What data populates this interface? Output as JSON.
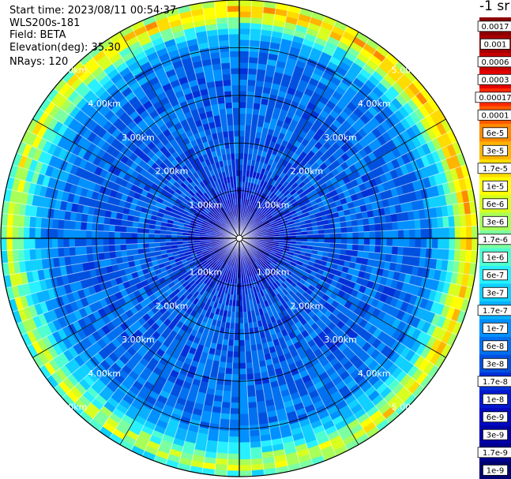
{
  "info": {
    "start_time": "Start time: 2023/08/11 00:54:37",
    "device": "WLS200s-181",
    "field": "Field: BETA",
    "elevation": "Elevation(deg): 35.30",
    "nrays": "NRays: 120"
  },
  "chart_data": {
    "type": "heatmap",
    "projection": "polar-ppi",
    "field": "BETA",
    "unit_label": "-1 sr",
    "range_rings_km": [
      1.0,
      2.0,
      3.0,
      4.0,
      5.0
    ],
    "range_ring_labels": [
      "1.00km",
      "2.00km",
      "3.00km",
      "4.00km",
      "5.00km"
    ],
    "range_max_km": 5.0,
    "n_rays": 120,
    "colorbar": {
      "scale": "log",
      "ticks": [
        "0.0017",
        "0.001",
        "0.0006",
        "0.0003",
        "0.00017",
        "0.0001",
        "6e-5",
        "3e-5",
        "1.7e-5",
        "1e-5",
        "6e-6",
        "3e-6",
        "1.7e-6",
        "1e-6",
        "6e-7",
        "3e-7",
        "1.7e-7",
        "1e-7",
        "6e-8",
        "3e-8",
        "1.7e-8",
        "1e-8",
        "6e-9",
        "3e-9",
        "1.7e-9",
        "1e-9"
      ],
      "colors": [
        "#8b0000",
        "#a50000",
        "#c80000",
        "#e60000",
        "#ff2a00",
        "#ff5a00",
        "#ff8a00",
        "#ffb400",
        "#ffdc00",
        "#ffff00",
        "#d8ff20",
        "#a8ff58",
        "#7cffa0",
        "#50ffd0",
        "#28f0ff",
        "#10d0ff",
        "#08b0ff",
        "#0090ff",
        "#0070f0",
        "#0050e0",
        "#0030d8",
        "#0018d0",
        "#0008c0",
        "#0000a8",
        "#000090",
        "#000070"
      ],
      "dark_text_indices": [
        0,
        1,
        2,
        3,
        5,
        6,
        7,
        20,
        21,
        22,
        23,
        24,
        25
      ]
    },
    "field_profile": [
      {
        "range_km": 0.0,
        "log10": -8.6
      },
      {
        "range_km": 0.6,
        "log10": -8.2
      },
      {
        "range_km": 1.2,
        "log10": -7.6
      },
      {
        "range_km": 2.0,
        "log10": -7.35
      },
      {
        "range_km": 3.0,
        "log10": -7.3
      },
      {
        "range_km": 4.0,
        "log10": -7.1
      },
      {
        "range_km": 4.4,
        "log10": -6.4
      },
      {
        "range_km": 4.7,
        "log10": -5.3
      },
      {
        "range_km": 4.85,
        "log10": -4.9
      },
      {
        "range_km": 5.0,
        "log10": -6.2
      }
    ]
  }
}
